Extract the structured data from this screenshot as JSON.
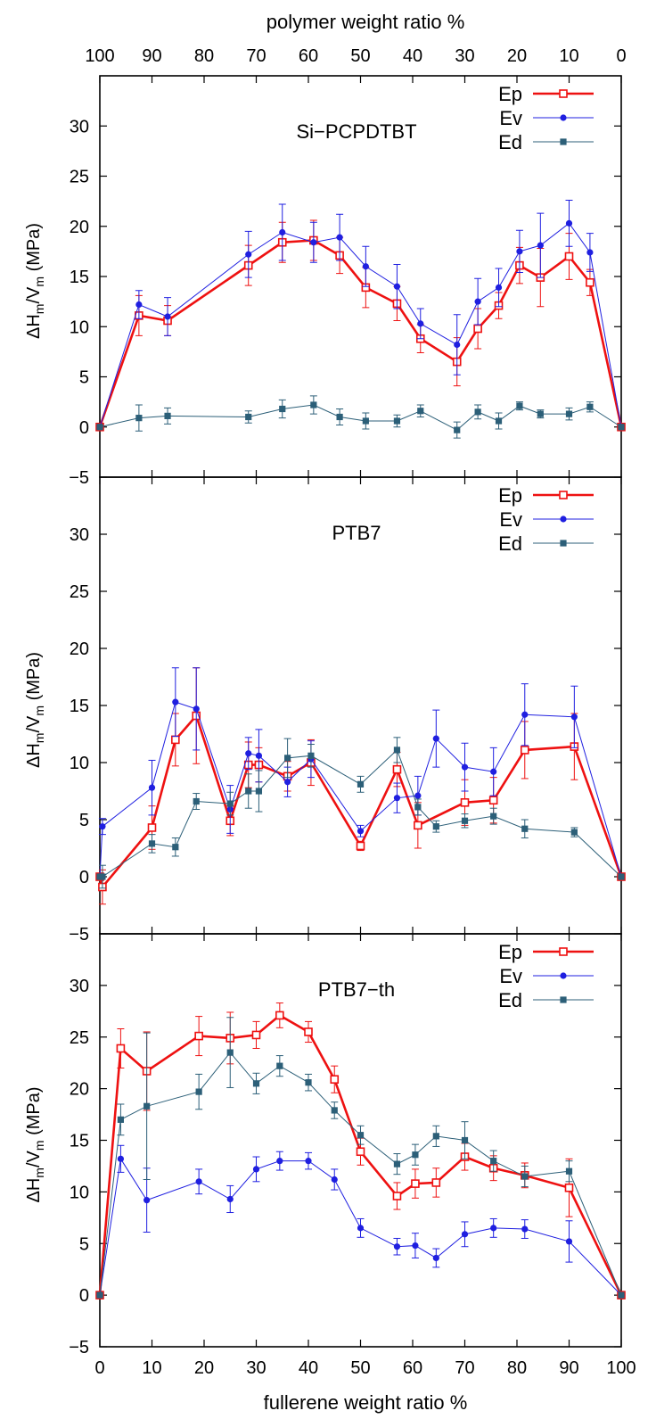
{
  "chart_data": [
    {
      "type": "line",
      "title": "Si−PCPDTBT",
      "ylabel_main": "ΔH",
      "ylabel_sub1": "m",
      "ylabel_mid": "/V",
      "ylabel_sub2": "m",
      "ylabel_unit": " (MPa)",
      "ylim": [
        -5,
        35
      ],
      "yticks": [
        -5,
        0,
        5,
        10,
        15,
        20,
        25,
        30
      ],
      "legend_position": "top-right",
      "series": [
        {
          "name": "Ep",
          "color": "#ee1111",
          "x": [
            0,
            7.5,
            13,
            28.5,
            35,
            41,
            46,
            51,
            57,
            61.5,
            68.5,
            72.5,
            76.5,
            80.5,
            84.5,
            90,
            94,
            100
          ],
          "y": [
            0,
            11.1,
            10.6,
            16.1,
            18.4,
            18.6,
            17.1,
            13.9,
            12.3,
            8.8,
            6.5,
            9.8,
            12.1,
            16.1,
            14.9,
            17.0,
            14.4,
            0
          ],
          "err": [
            0,
            2.0,
            1.5,
            2.0,
            2.0,
            2.0,
            1.8,
            2.0,
            1.7,
            1.4,
            2.4,
            2.0,
            1.3,
            1.8,
            2.9,
            2.3,
            1.3,
            0
          ]
        },
        {
          "name": "Ev",
          "color": "#1f1fe0",
          "x": [
            0,
            7.5,
            13,
            28.5,
            35,
            41,
            46,
            51,
            57,
            61.5,
            68.5,
            72.5,
            76.5,
            80.5,
            84.5,
            90,
            94,
            100
          ],
          "y": [
            0,
            12.2,
            11.0,
            17.2,
            19.4,
            18.4,
            18.9,
            16.0,
            14.0,
            10.3,
            8.2,
            12.5,
            13.9,
            17.5,
            18.1,
            20.3,
            17.4,
            0
          ],
          "err": [
            0,
            1.4,
            1.9,
            2.3,
            2.8,
            2.0,
            2.3,
            2.0,
            2.2,
            1.5,
            3.0,
            2.3,
            1.9,
            2.1,
            3.2,
            2.3,
            1.9,
            0
          ]
        },
        {
          "name": "Ed",
          "color": "#2c5f78",
          "x": [
            0,
            7.5,
            13,
            28.5,
            35,
            41,
            46,
            51,
            57,
            61.5,
            68.5,
            72.5,
            76.5,
            80.5,
            84.5,
            90,
            94,
            100
          ],
          "y": [
            0,
            0.9,
            1.1,
            1.0,
            1.8,
            2.2,
            1.0,
            0.6,
            0.6,
            1.6,
            -0.3,
            1.5,
            0.6,
            2.1,
            1.3,
            1.3,
            2.0,
            0
          ],
          "err": [
            0,
            1.3,
            0.8,
            0.6,
            0.9,
            0.9,
            0.8,
            0.8,
            0.6,
            0.6,
            0.8,
            0.7,
            0.8,
            0.4,
            0.4,
            0.6,
            0.5,
            0
          ]
        }
      ]
    },
    {
      "type": "line",
      "title": "PTB7",
      "ylabel_main": "ΔH",
      "ylabel_sub1": "m",
      "ylabel_mid": "/V",
      "ylabel_sub2": "m",
      "ylabel_unit": " (MPa)",
      "ylim": [
        -5,
        35
      ],
      "yticks": [
        -5,
        0,
        5,
        10,
        15,
        20,
        25,
        30
      ],
      "legend_position": "top-right",
      "series": [
        {
          "name": "Ep",
          "color": "#ee1111",
          "x": [
            0,
            0.5,
            10,
            14.5,
            18.5,
            25,
            28.5,
            30.5,
            36,
            40.5,
            50,
            57,
            61,
            70,
            75.5,
            81.5,
            91,
            100
          ],
          "y": [
            0,
            -0.9,
            4.3,
            12.0,
            14.1,
            4.9,
            9.8,
            9.8,
            8.8,
            10.0,
            2.7,
            9.4,
            4.5,
            6.5,
            6.7,
            11.1,
            11.4,
            0
          ],
          "err": [
            0,
            1.5,
            1.9,
            2.3,
            4.2,
            1.3,
            2.0,
            1.5,
            1.3,
            2.0,
            0.4,
            1.5,
            2.0,
            2.0,
            2.0,
            2.5,
            2.9,
            0
          ]
        },
        {
          "name": "Ev",
          "color": "#1f1fe0",
          "x": [
            0,
            0.5,
            10,
            14.5,
            18.5,
            25,
            28.5,
            30.5,
            36,
            40.5,
            50,
            57,
            61,
            64.5,
            70,
            75.5,
            81.5,
            91,
            100
          ],
          "y": [
            0,
            4.4,
            7.8,
            15.3,
            14.7,
            5.9,
            10.8,
            10.6,
            8.3,
            10.3,
            4.0,
            6.9,
            7.1,
            12.1,
            9.6,
            9.2,
            14.2,
            14.0,
            0
          ],
          "err": [
            0,
            0.7,
            2.4,
            3.0,
            3.6,
            2.1,
            1.4,
            2.3,
            1.3,
            1.6,
            0.5,
            1.3,
            1.7,
            2.5,
            2.1,
            2.1,
            2.7,
            2.7,
            0
          ]
        },
        {
          "name": "Ed",
          "color": "#2c5f78",
          "x": [
            0,
            0.5,
            10,
            14.5,
            18.5,
            25,
            28.5,
            30.5,
            36,
            40.5,
            50,
            57,
            61,
            64.5,
            70,
            75.5,
            81.5,
            91,
            100
          ],
          "y": [
            0,
            0.0,
            2.9,
            2.6,
            6.6,
            6.4,
            7.5,
            7.5,
            10.4,
            10.6,
            8.1,
            11.1,
            6.1,
            4.4,
            4.9,
            5.3,
            4.2,
            3.9,
            0
          ],
          "err": [
            0,
            1.0,
            0.8,
            0.8,
            0.7,
            1.0,
            1.5,
            1.8,
            1.7,
            1.0,
            0.7,
            1.1,
            0.7,
            0.5,
            0.6,
            0.7,
            0.8,
            0.4,
            0
          ]
        }
      ]
    },
    {
      "type": "line",
      "title": "PTB7−th",
      "ylabel_main": "ΔH",
      "ylabel_sub1": "m",
      "ylabel_mid": "/V",
      "ylabel_sub2": "m",
      "ylabel_unit": " (MPa)",
      "ylim": [
        -5,
        35
      ],
      "yticks": [
        -5,
        0,
        5,
        10,
        15,
        20,
        25,
        30
      ],
      "xticks": [
        0,
        10,
        20,
        30,
        40,
        50,
        60,
        70,
        80,
        90,
        100
      ],
      "xlabel": "fullerene weight ratio %",
      "legend_position": "top-right",
      "series": [
        {
          "name": "Ep",
          "color": "#ee1111",
          "x": [
            0,
            4,
            9,
            19,
            25,
            30,
            34.5,
            40,
            45,
            50,
            57,
            60.5,
            64.5,
            70,
            75.5,
            81.5,
            90,
            100
          ],
          "y": [
            0,
            23.9,
            21.7,
            25.1,
            24.9,
            25.2,
            27.1,
            25.5,
            20.9,
            13.9,
            9.6,
            10.8,
            10.9,
            13.4,
            12.3,
            11.6,
            10.4,
            0
          ],
          "err": [
            0,
            1.9,
            3.8,
            1.9,
            2.5,
            1.3,
            1.2,
            1.0,
            1.3,
            1.3,
            1.3,
            1.4,
            1.4,
            1.3,
            1.2,
            1.2,
            2.8,
            0
          ]
        },
        {
          "name": "Ev",
          "color": "#1f1fe0",
          "x": [
            0,
            4,
            9,
            19,
            25,
            30,
            34.5,
            40,
            45,
            50,
            57,
            60.5,
            64.5,
            70,
            75.5,
            81.5,
            90,
            100
          ],
          "y": [
            0,
            13.2,
            9.2,
            11.0,
            9.3,
            12.2,
            13.0,
            13.0,
            11.2,
            6.5,
            4.7,
            4.8,
            3.6,
            5.9,
            6.5,
            6.4,
            5.2,
            0
          ],
          "err": [
            0,
            1.3,
            3.1,
            1.2,
            1.3,
            1.2,
            0.9,
            0.8,
            1.0,
            0.9,
            0.8,
            1.2,
            0.9,
            1.2,
            0.9,
            0.9,
            2.0,
            0
          ]
        },
        {
          "name": "Ed",
          "color": "#2c5f78",
          "x": [
            0,
            4,
            9,
            19,
            25,
            30,
            34.5,
            40,
            45,
            50,
            57,
            60.5,
            64.5,
            70,
            75.5,
            81.5,
            90,
            100
          ],
          "y": [
            0,
            17.0,
            18.3,
            19.7,
            23.5,
            20.5,
            22.2,
            20.6,
            17.9,
            15.5,
            12.7,
            13.6,
            15.4,
            15.0,
            13.0,
            11.5,
            12.0,
            0
          ],
          "err": [
            0,
            1.5,
            7.1,
            1.7,
            3.4,
            1.0,
            1.0,
            0.8,
            0.8,
            0.9,
            1.0,
            1.0,
            1.0,
            1.8,
            1.0,
            1.0,
            1.0,
            0
          ]
        }
      ]
    }
  ],
  "top_axis": {
    "label": "polymer weight ratio %",
    "ticks": [
      "100",
      "90",
      "80",
      "70",
      "60",
      "50",
      "40",
      "30",
      "20",
      "10",
      "0"
    ]
  }
}
